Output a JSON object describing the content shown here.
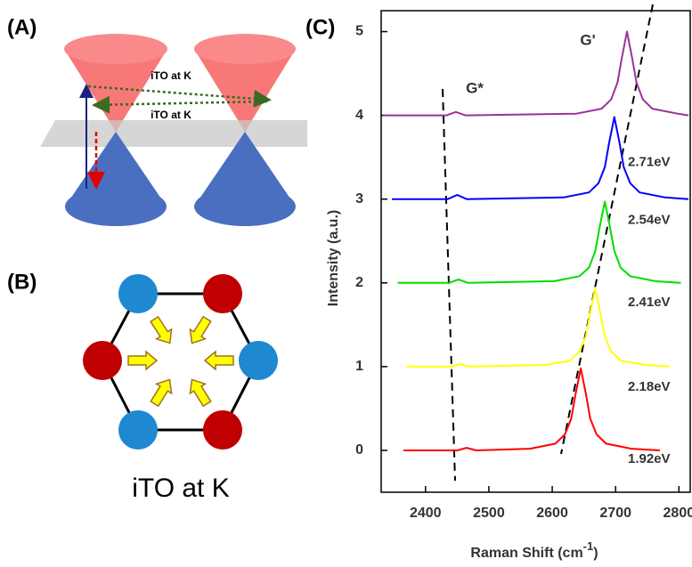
{
  "panel_a": {
    "label": "(A)",
    "annotations": [
      "iTO at K",
      "iTO at K"
    ]
  },
  "panel_b": {
    "label": "(B)",
    "caption": "iTO at K"
  },
  "chart_data": {
    "type": "line",
    "panel_label": "(C)",
    "x_label": {
      "text": "Raman Shift (cm",
      "superscript": "-1",
      "suffix": ")"
    },
    "y_label": "Intensity (a.u.)",
    "annotations": [
      "G*",
      "G'"
    ],
    "xlim": [
      2330,
      2815
    ],
    "ylim": [
      -0.5,
      5.25
    ],
    "xticks": [
      2400,
      2500,
      2600,
      2700,
      2800
    ],
    "yticks": [
      0,
      1,
      2,
      3,
      4,
      5
    ],
    "series": [
      {
        "name": "1.92eV",
        "color": "#ff0000",
        "x": [
          2365,
          2450,
          2465,
          2480,
          2565,
          2605,
          2620,
          2630,
          2637,
          2645,
          2653,
          2660,
          2670,
          2685,
          2725,
          2770
        ],
        "values": [
          0,
          0,
          0.03,
          0,
          0.02,
          0.08,
          0.19,
          0.38,
          0.68,
          0.98,
          0.68,
          0.38,
          0.19,
          0.08,
          0.02,
          0
        ]
      },
      {
        "name": "2.18eV",
        "color": "#ffff00",
        "x": [
          2370,
          2440,
          2455,
          2470,
          2588,
          2628,
          2643,
          2653,
          2660,
          2668,
          2676,
          2683,
          2693,
          2708,
          2748,
          2785
        ],
        "values": [
          1,
          1,
          1.03,
          1,
          1.02,
          1.07,
          1.18,
          1.36,
          1.64,
          1.93,
          1.64,
          1.36,
          1.18,
          1.07,
          1.02,
          1
        ]
      },
      {
        "name": "2.41eV",
        "color": "#00dd00",
        "x": [
          2356,
          2437,
          2452,
          2467,
          2603,
          2643,
          2658,
          2668,
          2675,
          2683,
          2691,
          2698,
          2708,
          2723,
          2763,
          2803
        ],
        "values": [
          2,
          2,
          2.04,
          2,
          2.02,
          2.08,
          2.18,
          2.38,
          2.67,
          2.97,
          2.67,
          2.38,
          2.18,
          2.08,
          2.02,
          2
        ]
      },
      {
        "name": "2.54eV",
        "color": "#0000ff",
        "x": [
          2347,
          2435,
          2450,
          2465,
          2618,
          2658,
          2673,
          2683,
          2690,
          2698,
          2706,
          2713,
          2723,
          2738,
          2778,
          2815
        ],
        "values": [
          3,
          3,
          3.05,
          3,
          3.02,
          3.08,
          3.19,
          3.38,
          3.68,
          3.98,
          3.68,
          3.38,
          3.19,
          3.08,
          3.02,
          3
        ]
      },
      {
        "name": "2.71eV",
        "color": "#993399",
        "x": [
          2333,
          2433,
          2448,
          2463,
          2638,
          2678,
          2693,
          2703,
          2710,
          2718,
          2726,
          2733,
          2743,
          2758,
          2798,
          2815
        ],
        "values": [
          4,
          4,
          4.04,
          4,
          4.02,
          4.08,
          4.19,
          4.39,
          4.69,
          5,
          4.69,
          4.39,
          4.19,
          4.08,
          4.02,
          4
        ]
      }
    ]
  }
}
